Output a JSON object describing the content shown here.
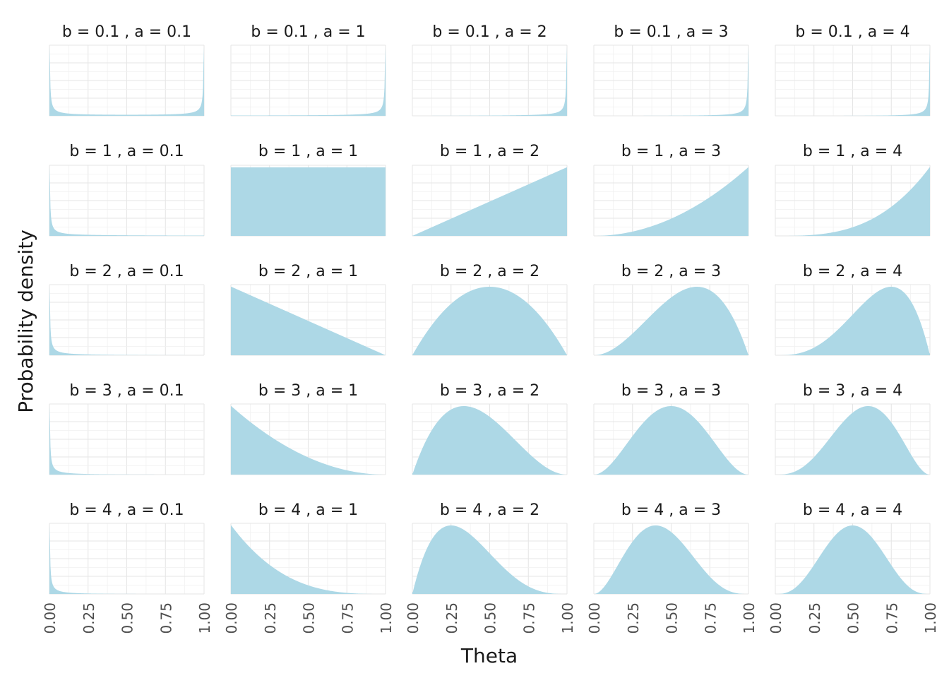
{
  "chart_data": {
    "type": "area",
    "distribution": "Beta(a, b) density",
    "xlabel": "Theta",
    "ylabel": "Probability density",
    "xlim": [
      0,
      1
    ],
    "x_ticks": [
      "0.00",
      "0.25",
      "0.50",
      "0.75",
      "1.00"
    ],
    "y_ticks_shown": false,
    "free_y_scales": true,
    "fill_color": "#add8e6",
    "grid": true,
    "rows_b": [
      0.1,
      1,
      2,
      3,
      4
    ],
    "cols_a": [
      0.1,
      1,
      2,
      3,
      4
    ],
    "facets": [
      {
        "label": "b = 0.1 , a = 0.1",
        "b": 0.1,
        "a": 0.1
      },
      {
        "label": "b = 0.1 , a = 1",
        "b": 0.1,
        "a": 1
      },
      {
        "label": "b = 0.1 , a = 2",
        "b": 0.1,
        "a": 2
      },
      {
        "label": "b = 0.1 , a = 3",
        "b": 0.1,
        "a": 3
      },
      {
        "label": "b = 0.1 , a = 4",
        "b": 0.1,
        "a": 4
      },
      {
        "label": "b = 1 , a = 0.1",
        "b": 1,
        "a": 0.1
      },
      {
        "label": "b = 1 , a = 1",
        "b": 1,
        "a": 1
      },
      {
        "label": "b = 1 , a = 2",
        "b": 1,
        "a": 2
      },
      {
        "label": "b = 1 , a = 3",
        "b": 1,
        "a": 3
      },
      {
        "label": "b = 1 , a = 4",
        "b": 1,
        "a": 4
      },
      {
        "label": "b = 2 , a = 0.1",
        "b": 2,
        "a": 0.1
      },
      {
        "label": "b = 2 , a = 1",
        "b": 2,
        "a": 1
      },
      {
        "label": "b = 2 , a = 2",
        "b": 2,
        "a": 2
      },
      {
        "label": "b = 2 , a = 3",
        "b": 2,
        "a": 3
      },
      {
        "label": "b = 2 , a = 4",
        "b": 2,
        "a": 4
      },
      {
        "label": "b = 3 , a = 0.1",
        "b": 3,
        "a": 0.1
      },
      {
        "label": "b = 3 , a = 1",
        "b": 3,
        "a": 1
      },
      {
        "label": "b = 3 , a = 2",
        "b": 3,
        "a": 2
      },
      {
        "label": "b = 3 , a = 3",
        "b": 3,
        "a": 3
      },
      {
        "label": "b = 3 , a = 4",
        "b": 3,
        "a": 4
      },
      {
        "label": "b = 4 , a = 0.1",
        "b": 4,
        "a": 0.1
      },
      {
        "label": "b = 4 , a = 1",
        "b": 4,
        "a": 1
      },
      {
        "label": "b = 4 , a = 2",
        "b": 4,
        "a": 2
      },
      {
        "label": "b = 4 , a = 3",
        "b": 4,
        "a": 3
      },
      {
        "label": "b = 4 , a = 4",
        "b": 4,
        "a": 4
      }
    ]
  }
}
